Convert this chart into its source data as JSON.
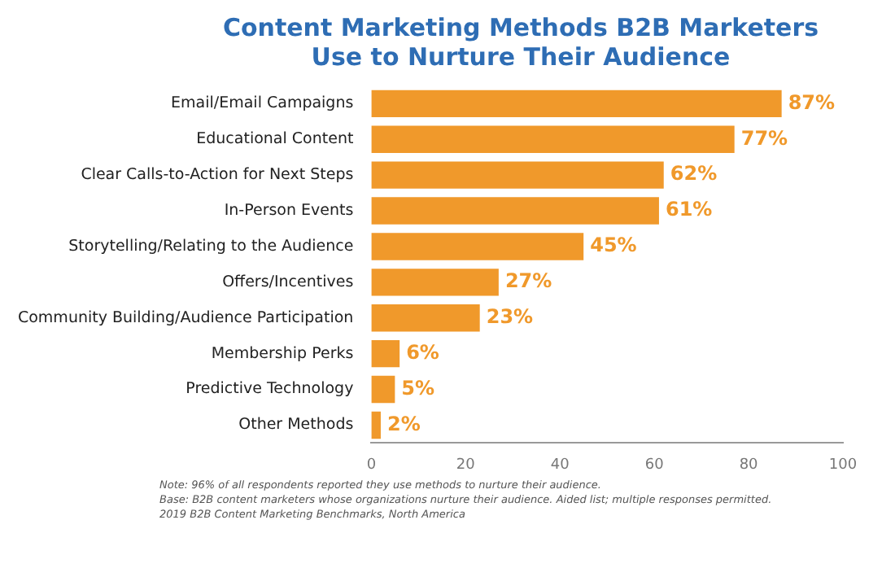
{
  "chart_data": {
    "type": "bar",
    "orientation": "horizontal",
    "title": "Content Marketing Methods B2B Marketers\nUse to Nurture Their Audience",
    "categories": [
      "Email/Email Campaigns",
      "Educational Content",
      "Clear Calls-to-Action for Next Steps",
      "In-Person Events",
      "Storytelling/Relating to the Audience",
      "Offers/Incentives",
      "Community Building/Audience Participation",
      "Membership Perks",
      "Predictive Technology",
      "Other Methods"
    ],
    "values": [
      87,
      77,
      62,
      61,
      45,
      27,
      23,
      6,
      5,
      2
    ],
    "value_labels": [
      "87%",
      "77%",
      "62%",
      "61%",
      "45%",
      "27%",
      "23%",
      "6%",
      "5%",
      "2%"
    ],
    "color": "#f0992b",
    "xlim": [
      0,
      100
    ],
    "xticks": [
      0,
      20,
      40,
      60,
      80,
      100
    ],
    "grid": false,
    "annotations": [
      "Note: 96% of all respondents reported they use methods to nurture their audience.",
      "Base: B2B content marketers whose organizations nurture their audience. Aided list; multiple responses permitted.",
      "2019 B2B Content Marketing Benchmarks, North America"
    ]
  }
}
